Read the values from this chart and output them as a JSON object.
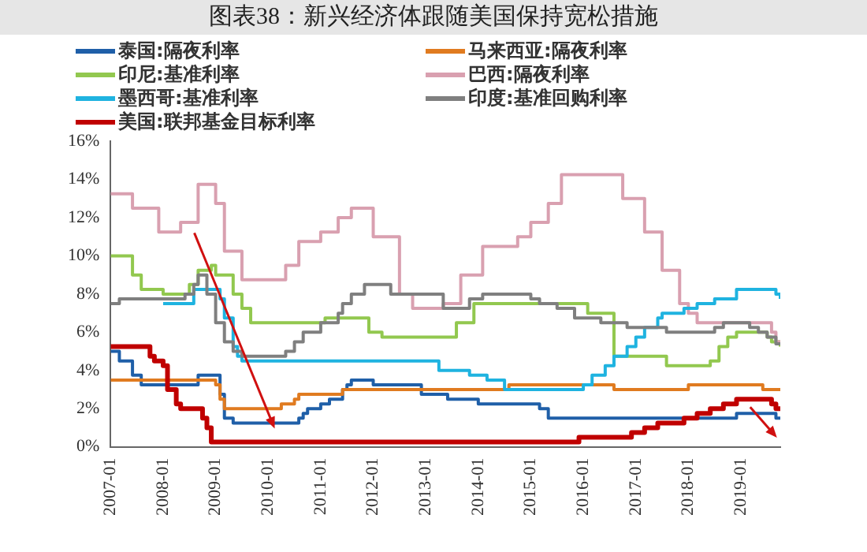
{
  "chart_data": {
    "type": "step",
    "title": "图表38：新兴经济体跟随美国保持宽松措施",
    "xlim": [
      "2007-01",
      "2019-10"
    ],
    "xticks": [
      "2007-01",
      "2008-01",
      "2009-01",
      "2010-01",
      "2011-01",
      "2012-01",
      "2013-01",
      "2014-01",
      "2015-01",
      "2016-01",
      "2017-01",
      "2018-01",
      "2019-01"
    ],
    "ylim": [
      0,
      16
    ],
    "yticks": [
      {
        "value": 0,
        "label": "0%"
      },
      {
        "value": 2,
        "label": "2%"
      },
      {
        "value": 4,
        "label": "4%"
      },
      {
        "value": 6,
        "label": "6%"
      },
      {
        "value": 8,
        "label": "8%"
      },
      {
        "value": 10,
        "label": "10%"
      },
      {
        "value": 12,
        "label": "12%"
      },
      {
        "value": 14,
        "label": "14%"
      },
      {
        "value": 16,
        "label": "16%"
      }
    ],
    "grid": false,
    "legend": "top",
    "marker": "none",
    "line_style": "solid",
    "series": [
      {
        "name": "泰国:隔夜利率",
        "color": "#1f5fa8",
        "x": [
          "2007-01",
          "2007-03",
          "2007-06",
          "2007-08",
          "2008-09",
          "2009-02",
          "2009-03",
          "2009-05",
          "2010-08",
          "2010-09",
          "2010-10",
          "2011-01",
          "2011-03",
          "2011-06",
          "2011-07",
          "2011-08",
          "2012-01",
          "2012-12",
          "2013-06",
          "2014-01",
          "2015-03",
          "2015-05",
          "2018-12",
          "2019-09",
          "2019-10"
        ],
        "values": [
          5,
          4.5,
          3.75,
          3.25,
          3.75,
          2.75,
          1.5,
          1.25,
          1.5,
          1.75,
          2,
          2.25,
          2.5,
          3,
          3.25,
          3.5,
          3.25,
          2.75,
          2.5,
          2.25,
          2,
          1.5,
          1.75,
          1.5,
          1.5
        ]
      },
      {
        "name": "马来西亚:隔夜利率",
        "color": "#e07b20",
        "x": [
          "2007-01",
          "2009-01",
          "2009-02",
          "2009-03",
          "2010-04",
          "2010-07",
          "2010-08",
          "2011-06",
          "2014-08",
          "2016-08",
          "2018-01",
          "2019-06",
          "2019-10"
        ],
        "values": [
          3.5,
          3.25,
          2.5,
          2,
          2.25,
          2.5,
          2.75,
          3,
          3.25,
          3,
          3.25,
          3,
          3
        ]
      },
      {
        "name": "印尼:基准利率",
        "color": "#92c84f",
        "x": [
          "2007-01",
          "2007-06",
          "2007-08",
          "2008-01",
          "2008-07",
          "2008-09",
          "2008-12",
          "2009-01",
          "2009-05",
          "2009-07",
          "2009-09",
          "2011-02",
          "2011-12",
          "2012-03",
          "2013-08",
          "2013-12",
          "2016-02",
          "2016-08",
          "2017-08",
          "2018-06",
          "2018-08",
          "2018-10",
          "2018-12",
          "2019-07",
          "2019-08",
          "2019-10"
        ],
        "values": [
          10,
          9,
          8.25,
          8,
          8.5,
          9.25,
          9.5,
          9,
          8,
          7.25,
          6.5,
          6.75,
          6,
          5.75,
          6.5,
          7.5,
          7,
          4.75,
          4.25,
          4.5,
          5.25,
          5.75,
          6,
          5.75,
          5.5,
          5.25
        ]
      },
      {
        "name": "巴西:隔夜利率",
        "color": "#d9a0b0",
        "x": [
          "2007-01",
          "2007-06",
          "2007-12",
          "2008-05",
          "2008-09",
          "2009-01",
          "2009-03",
          "2009-07",
          "2010-05",
          "2010-08",
          "2011-01",
          "2011-05",
          "2011-08",
          "2012-01",
          "2012-07",
          "2012-10",
          "2013-05",
          "2013-09",
          "2014-02",
          "2014-10",
          "2015-01",
          "2015-05",
          "2015-08",
          "2016-10",
          "2017-03",
          "2017-07",
          "2017-11",
          "2018-01",
          "2018-03",
          "2019-08",
          "2019-09",
          "2019-10"
        ],
        "values": [
          13.25,
          12.5,
          11.25,
          11.75,
          13.75,
          12.75,
          10.25,
          8.75,
          9.5,
          10.75,
          11.25,
          12,
          12.5,
          11,
          8,
          7.25,
          7.5,
          9,
          10.5,
          11,
          11.75,
          12.75,
          14.25,
          13,
          11.25,
          9.25,
          7.5,
          7,
          6.5,
          6,
          5.5,
          5.5
        ]
      },
      {
        "name": "墨西哥:基准利率",
        "color": "#1fb3e0",
        "x": [
          "2008-01",
          "2008-08",
          "2009-02",
          "2009-03",
          "2009-05",
          "2009-06",
          "2009-07",
          "2013-04",
          "2013-11",
          "2014-03",
          "2014-07",
          "2016-01",
          "2016-03",
          "2016-06",
          "2016-08",
          "2016-11",
          "2017-01",
          "2017-03",
          "2017-06",
          "2017-07",
          "2017-12",
          "2018-03",
          "2018-07",
          "2018-12",
          "2019-09",
          "2019-10"
        ],
        "values": [
          7.5,
          8.25,
          7.75,
          6.75,
          5.25,
          4.75,
          4.5,
          4,
          3.75,
          3.5,
          3,
          3.25,
          3.75,
          4.25,
          4.75,
          5.25,
          5.75,
          6.25,
          6.75,
          7,
          7.25,
          7.5,
          7.75,
          8.25,
          8,
          7.75
        ]
      },
      {
        "name": "印度:基准回购利率",
        "color": "#7f7f7f",
        "x": [
          "2007-01",
          "2007-03",
          "2008-06",
          "2008-08",
          "2008-09",
          "2008-11",
          "2009-01",
          "2009-03",
          "2009-05",
          "2009-07",
          "2010-05",
          "2010-07",
          "2010-09",
          "2011-01",
          "2011-05",
          "2011-06",
          "2011-08",
          "2011-11",
          "2012-05",
          "2013-05",
          "2013-11",
          "2014-02",
          "2015-01",
          "2015-03",
          "2015-07",
          "2015-11",
          "2016-05",
          "2016-11",
          "2017-08",
          "2018-07",
          "2018-09",
          "2019-03",
          "2019-05",
          "2019-07",
          "2019-09",
          "2019-10"
        ],
        "values": [
          7.5,
          7.75,
          8,
          8.5,
          9,
          8,
          6.5,
          5.5,
          5,
          4.75,
          5,
          5.5,
          6,
          6.5,
          7,
          7.5,
          8,
          8.5,
          8,
          7.25,
          7.75,
          8,
          7.75,
          7.5,
          7.25,
          6.75,
          6.5,
          6.25,
          6,
          6.25,
          6.5,
          6.25,
          6,
          5.75,
          5.4,
          5.4
        ]
      },
      {
        "name": "美国:联邦基金目标利率",
        "color": "#c00000",
        "x": [
          "2007-01",
          "2007-10",
          "2007-11",
          "2008-01",
          "2008-02",
          "2008-04",
          "2008-05",
          "2008-10",
          "2008-11",
          "2008-12",
          "2015-12",
          "2016-12",
          "2017-03",
          "2017-06",
          "2017-12",
          "2018-03",
          "2018-06",
          "2018-09",
          "2018-12",
          "2019-08",
          "2019-09",
          "2019-10"
        ],
        "values": [
          5.25,
          4.75,
          4.5,
          4.25,
          3,
          2.25,
          2,
          1.5,
          1,
          0.25,
          0.5,
          0.75,
          1,
          1.25,
          1.5,
          1.75,
          2,
          2.25,
          2.5,
          2.25,
          2,
          2
        ]
      }
    ]
  }
}
